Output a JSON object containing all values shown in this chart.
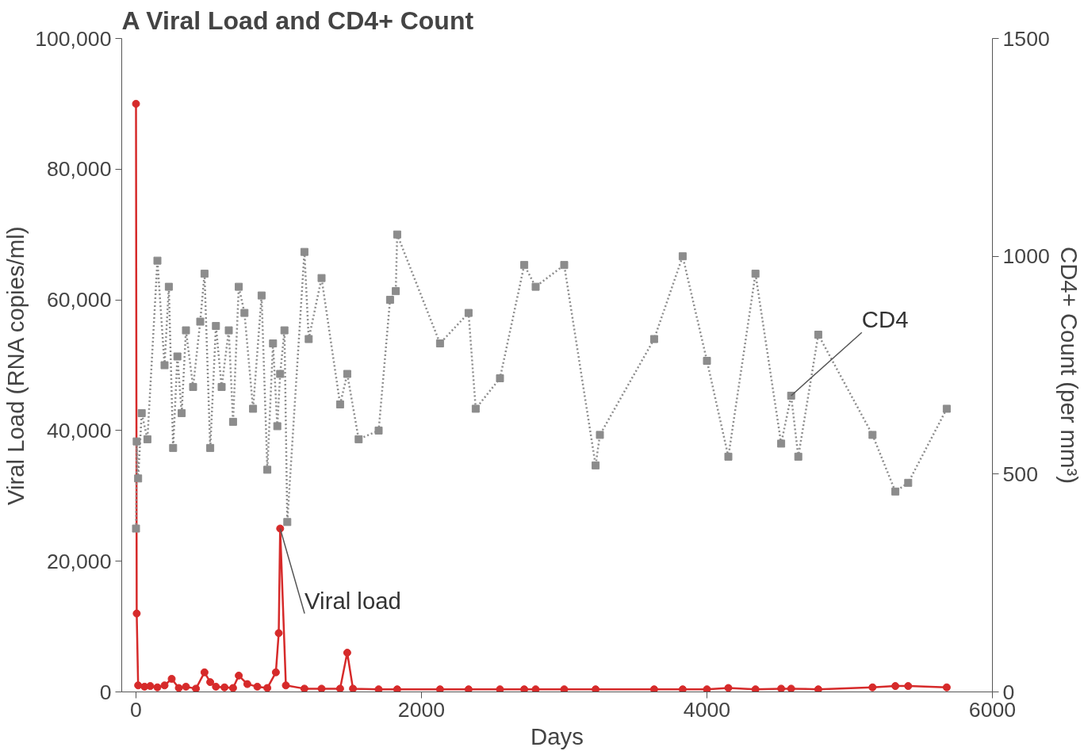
{
  "chart_data": {
    "type": "line",
    "title": "A  Viral Load and CD4+ Count",
    "xlabel": "Days",
    "ylabel": "Viral Load (RNA copies/ml)",
    "y2label": "CD4+ Count (per mm³)",
    "xlim": [
      -100,
      6000
    ],
    "xticks": [
      0,
      2000,
      4000,
      6000
    ],
    "ylim": [
      0,
      100000
    ],
    "yticks": [
      0,
      {
        "value": 20000,
        "label": "20,000"
      },
      {
        "value": 40000,
        "label": "40,000"
      },
      {
        "value": 60000,
        "label": "60,000"
      },
      {
        "value": 80000,
        "label": "80,000"
      },
      {
        "value": 100000,
        "label": "100,000"
      }
    ],
    "y2lim": [
      0,
      1500
    ],
    "y2ticks": [
      0,
      500,
      1000,
      1500
    ],
    "grid": false,
    "series": [
      {
        "name": "Viral load",
        "color": "#d62a2a",
        "marker": "circle",
        "line_style": "solid",
        "x": [
          0,
          5,
          15,
          60,
          100,
          150,
          200,
          250,
          300,
          350,
          420,
          480,
          520,
          560,
          620,
          680,
          720,
          780,
          850,
          920,
          980,
          1000,
          1010,
          1050,
          1180,
          1300,
          1430,
          1480,
          1520,
          1700,
          1830,
          2130,
          2330,
          2550,
          2720,
          2800,
          3000,
          3220,
          3630,
          3830,
          4000,
          4150,
          4340,
          4520,
          4590,
          4780,
          5160,
          5320,
          5410,
          5680
        ],
        "values": [
          90000,
          12000,
          1000,
          800,
          900,
          700,
          1000,
          2000,
          600,
          800,
          500,
          3000,
          1500,
          800,
          700,
          600,
          2500,
          1200,
          800,
          600,
          3000,
          9000,
          25000,
          1000,
          500,
          500,
          500,
          6000,
          500,
          400,
          400,
          400,
          400,
          400,
          400,
          400,
          400,
          400,
          400,
          400,
          400,
          600,
          400,
          500,
          500,
          400,
          700,
          900,
          900,
          700
        ]
      },
      {
        "name": "CD4",
        "color": "#8c8c8c",
        "marker": "square",
        "line_style": "dotted",
        "axis": "y2",
        "x": [
          0,
          5,
          15,
          40,
          80,
          150,
          200,
          230,
          260,
          290,
          320,
          350,
          400,
          450,
          480,
          520,
          560,
          600,
          650,
          680,
          720,
          760,
          820,
          880,
          920,
          960,
          990,
          1010,
          1040,
          1060,
          1180,
          1210,
          1300,
          1430,
          1480,
          1560,
          1700,
          1780,
          1820,
          1830,
          2130,
          2330,
          2380,
          2550,
          2720,
          2800,
          3000,
          3220,
          3250,
          3630,
          3830,
          4000,
          4150,
          4340,
          4520,
          4590,
          4640,
          4780,
          5160,
          5320,
          5410,
          5680
        ],
        "values": [
          375,
          575,
          490,
          640,
          580,
          990,
          750,
          930,
          560,
          770,
          640,
          830,
          700,
          850,
          960,
          560,
          840,
          700,
          830,
          620,
          930,
          870,
          650,
          910,
          510,
          800,
          610,
          730,
          830,
          390,
          1010,
          810,
          950,
          660,
          730,
          580,
          600,
          900,
          920,
          1050,
          800,
          870,
          650,
          720,
          980,
          930,
          980,
          520,
          590,
          810,
          1000,
          760,
          540,
          960,
          570,
          680,
          540,
          820,
          590,
          460,
          480,
          650
        ]
      }
    ]
  }
}
